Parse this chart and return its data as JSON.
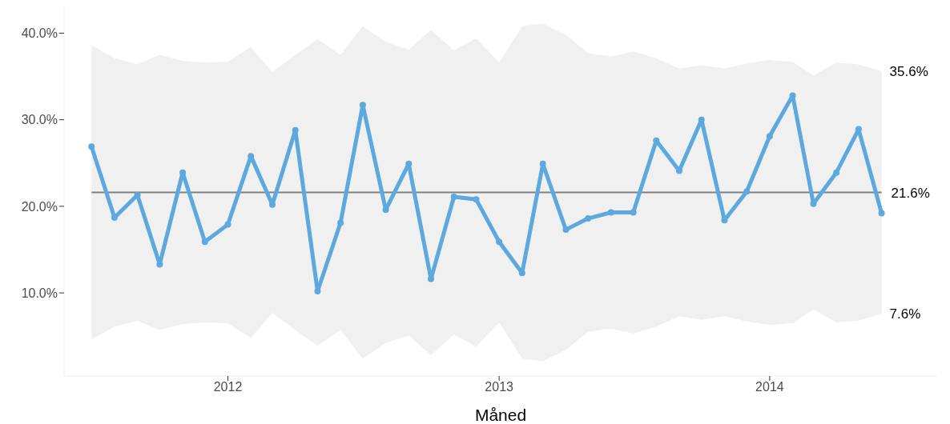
{
  "chart_data": {
    "type": "line",
    "xlabel": "Måned",
    "x": [
      "2011-07",
      "2011-08",
      "2011-09",
      "2011-10",
      "2011-11",
      "2011-12",
      "2012-01",
      "2012-02",
      "2012-03",
      "2012-04",
      "2012-05",
      "2012-06",
      "2012-07",
      "2012-08",
      "2012-09",
      "2012-10",
      "2012-11",
      "2012-12",
      "2013-01",
      "2013-02",
      "2013-03",
      "2013-04",
      "2013-05",
      "2013-06",
      "2013-07",
      "2013-08",
      "2013-09",
      "2013-10",
      "2013-11",
      "2013-12",
      "2014-01",
      "2014-02",
      "2014-03",
      "2014-04",
      "2014-05",
      "2014-06"
    ],
    "series": [
      {
        "color": "#5da9dd",
        "values": [
          26.9,
          18.7,
          21.3,
          13.3,
          23.9,
          15.9,
          17.9,
          25.8,
          20.2,
          28.8,
          10.2,
          18.1,
          31.7,
          19.6,
          24.9,
          11.6,
          21.1,
          20.8,
          15.9,
          12.3,
          24.9,
          17.3,
          18.6,
          19.3,
          19.3,
          27.6,
          24.1,
          30.0,
          18.4,
          21.7,
          28.1,
          32.8,
          20.3,
          23.9,
          28.9,
          19.2
        ],
        "lower": [
          4.6,
          6.1,
          6.8,
          5.7,
          6.4,
          6.6,
          6.5,
          4.8,
          7.7,
          5.7,
          3.9,
          5.7,
          2.4,
          4.2,
          5.1,
          2.8,
          5.2,
          3.8,
          6.6,
          2.4,
          2.1,
          3.4,
          5.5,
          5.9,
          5.3,
          6.1,
          7.3,
          6.9,
          7.3,
          6.7,
          6.3,
          6.5,
          8.1,
          6.6,
          6.8,
          7.6
        ],
        "upper": [
          38.6,
          37.1,
          36.4,
          37.5,
          36.8,
          36.6,
          36.7,
          38.4,
          35.5,
          37.5,
          39.3,
          37.5,
          40.8,
          39.0,
          38.1,
          40.4,
          38.0,
          39.4,
          36.6,
          40.8,
          41.1,
          39.8,
          37.7,
          37.3,
          37.9,
          37.1,
          35.9,
          36.3,
          35.9,
          36.5,
          36.9,
          36.7,
          35.1,
          36.6,
          36.4,
          35.6
        ]
      }
    ],
    "ref_lines": [
      {
        "axis": "y",
        "value": 21.6,
        "label": "21.6%",
        "color": "#808080"
      }
    ],
    "annotations": [
      {
        "text": "35.6%",
        "x": "2014-06",
        "y": 35.6
      },
      {
        "text": "7.6%",
        "x": "2014-06",
        "y": 7.6
      }
    ],
    "xlim": [
      "2011-05-25",
      "2014-08-15"
    ],
    "xticks": [
      {
        "value": "2012-01-01",
        "label": "2012"
      },
      {
        "value": "2013-01-01",
        "label": "2013"
      },
      {
        "value": "2014-01-01",
        "label": "2014"
      }
    ],
    "ylim": [
      0.4,
      43
    ],
    "yticks": [
      {
        "value": 10,
        "label": "10.0%"
      },
      {
        "value": 20,
        "label": "20.0%"
      },
      {
        "value": 30,
        "label": "30.0%"
      },
      {
        "value": 40,
        "label": "40.0%"
      }
    ],
    "marker": "circle",
    "line_style": "solid"
  }
}
